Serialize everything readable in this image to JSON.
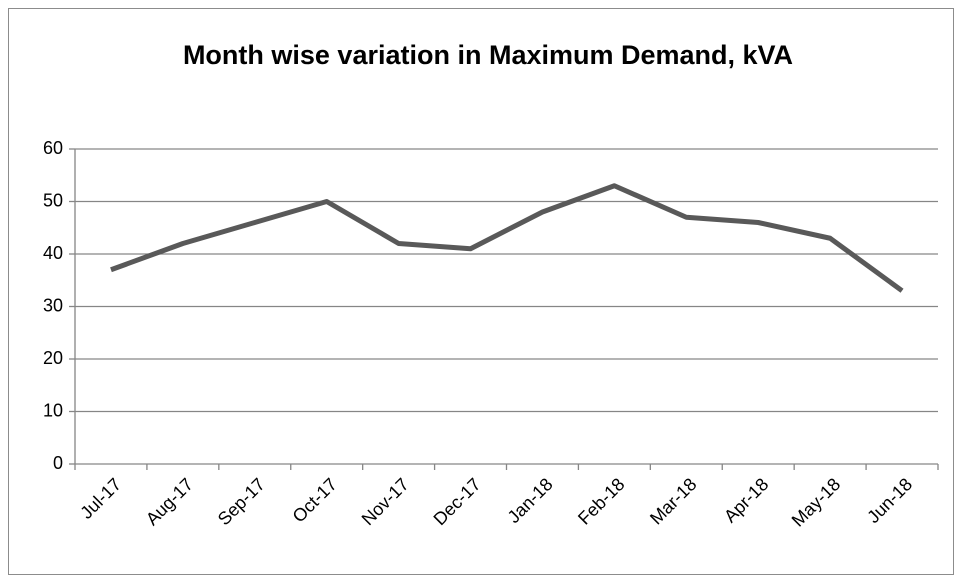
{
  "chart_data": {
    "type": "line",
    "title": "Month wise variation in Maximum Demand, kVA",
    "categories": [
      "Jul-17",
      "Aug-17",
      "Sep-17",
      "Oct-17",
      "Nov-17",
      "Dec-17",
      "Jan-18",
      "Feb-18",
      "Mar-18",
      "Apr-18",
      "May-18",
      "Jun-18"
    ],
    "values": [
      37,
      42,
      46,
      50,
      42,
      41,
      48,
      53,
      47,
      46,
      43,
      33
    ],
    "color": "#595959",
    "ylim": [
      0,
      60
    ],
    "yticks": [
      0,
      10,
      20,
      30,
      40,
      50,
      60
    ],
    "grid": true
  }
}
